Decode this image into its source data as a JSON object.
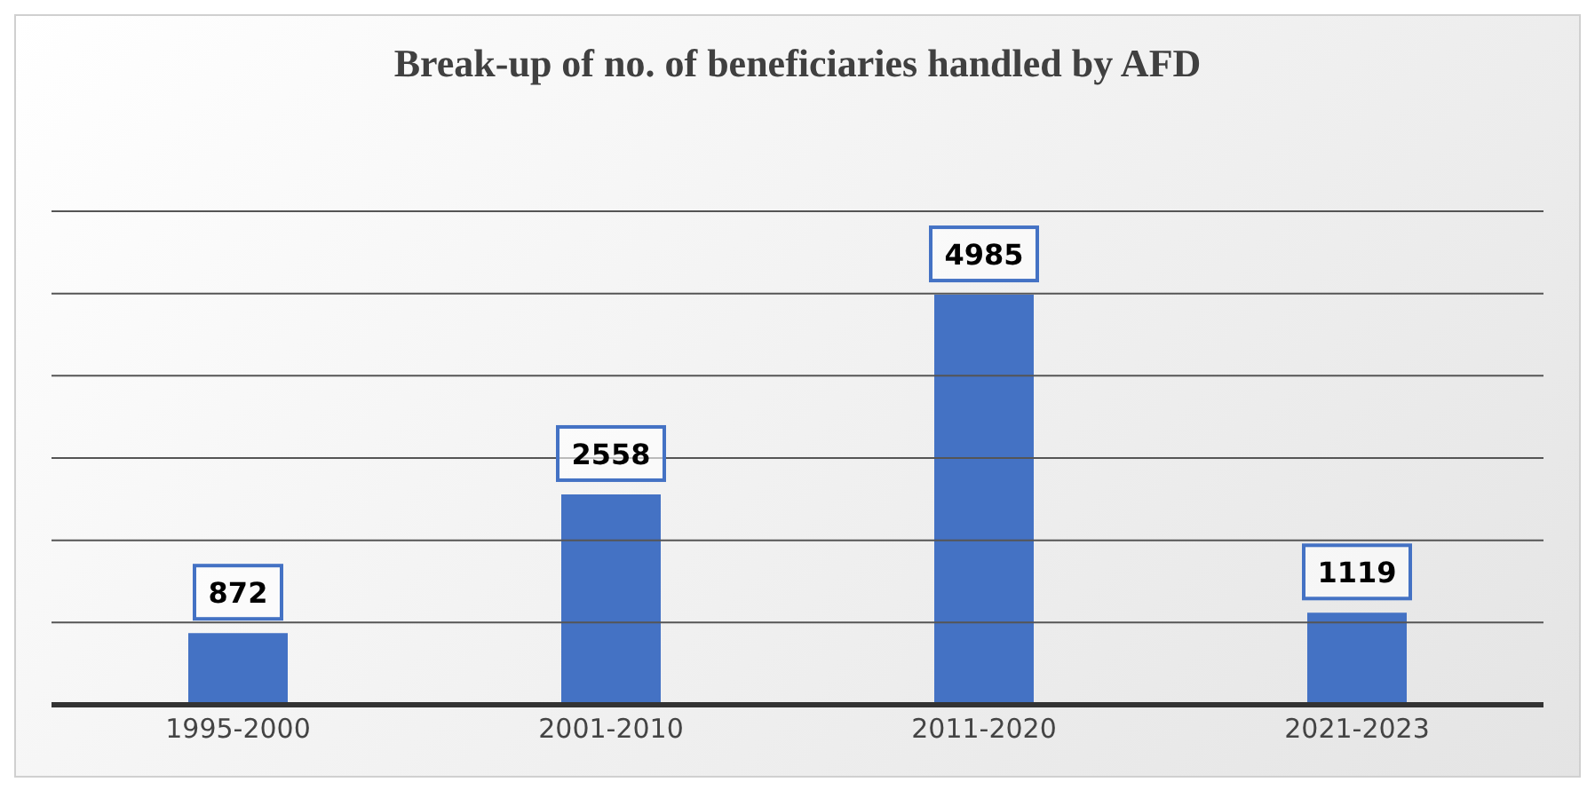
{
  "chart_data": {
    "type": "bar",
    "title": "Break-up of no. of beneficiaries handled by AFD",
    "categories": [
      "1995-2000",
      "2001-2010",
      "2011-2020",
      "2021-2023"
    ],
    "values": [
      872,
      2558,
      4985,
      1119
    ],
    "color": "#4472c4",
    "ylim": [
      0,
      6000
    ],
    "yticks": [
      {
        "value": 0,
        "label": null
      },
      {
        "value": 1000,
        "label": null
      },
      {
        "value": 2000,
        "label": null
      },
      {
        "value": 3000,
        "label": null
      },
      {
        "value": 4000,
        "label": null
      },
      {
        "value": 5000,
        "label": null
      },
      {
        "value": 6000,
        "label": null
      }
    ],
    "grid": "y",
    "tick_labels": "x",
    "data_labels": true
  }
}
